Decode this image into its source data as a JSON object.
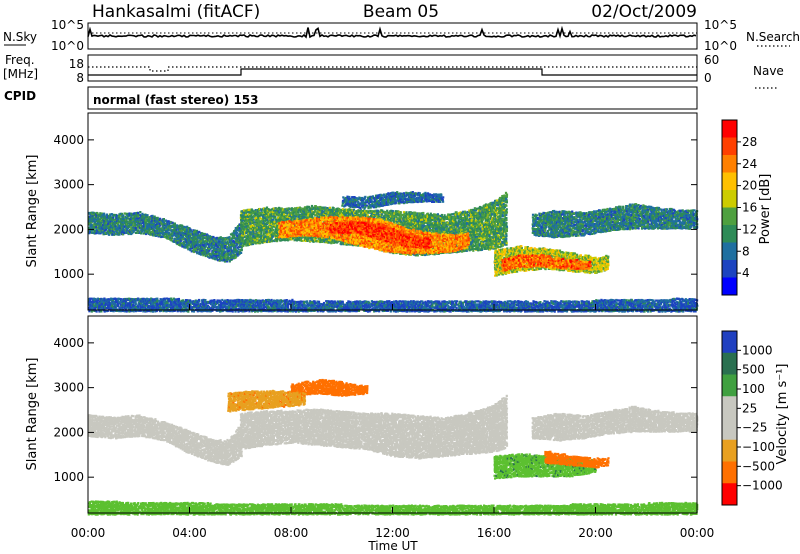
{
  "header": {
    "station": "Hankasalmi (fitACF)",
    "beam": "Beam 05",
    "date": "02/Oct/2009"
  },
  "noise_panel": {
    "left_label": "N.Sky",
    "left_ticks": [
      "10^5",
      "10^0"
    ],
    "right_ticks": [
      "10^5",
      "10^0"
    ],
    "right_label": "N.Search"
  },
  "freq_panel": {
    "left_label_1": "Freq.",
    "left_label_2": "[MHz]",
    "left_ticks": [
      "18",
      "8"
    ],
    "right_ticks": [
      "60",
      "0"
    ],
    "right_label": "Nave"
  },
  "cpid_panel": {
    "label": "CPID",
    "mode": "normal (fast stereo) 153"
  },
  "power_panel": {
    "ylabel": "Slant Range [km]",
    "yticks": [
      "4000",
      "3000",
      "2000",
      "1000"
    ],
    "colorbar_label": "Power [dB]",
    "colorbar_ticks": [
      "28",
      "24",
      "20",
      "16",
      "12",
      "8",
      "4"
    ],
    "colorbar_colors": [
      "#ff0000",
      "#ff4000",
      "#ff8000",
      "#ffc000",
      "#cccc00",
      "#4fa040",
      "#2e8b57",
      "#1f6fa0",
      "#1c44c0",
      "#0000ff"
    ]
  },
  "velocity_panel": {
    "ylabel": "Slant Range [km]",
    "yticks": [
      "4000",
      "3000",
      "2000",
      "1000"
    ],
    "colorbar_label": "Velocity [m s⁻¹]",
    "colorbar_ticks": [
      "1000",
      "500",
      "100",
      "25",
      "−25",
      "−100",
      "−500",
      "−1000"
    ],
    "colorbar_colors": [
      "#2040c0",
      "#2a7050",
      "#40a040",
      "#c8c8c0",
      "#c8c8c0",
      "#e8a020",
      "#ff7000",
      "#ff0000"
    ]
  },
  "xaxis": {
    "label": "Time UT",
    "ticks": [
      "00:00",
      "04:00",
      "08:00",
      "12:00",
      "16:00",
      "20:00",
      "00:00"
    ]
  },
  "chart_data": [
    {
      "type": "heatmap",
      "title": "Power",
      "xlabel": "Time UT",
      "ylabel": "Slant Range [km]",
      "xlim": [
        0,
        24
      ],
      "ylim": [
        200,
        4600
      ],
      "value_unit": "dB",
      "colorbar_range": [
        0,
        30
      ],
      "bands": [
        {
          "x": [
            0.0,
            1.0,
            2.0,
            3.0,
            4.0,
            5.0,
            5.5,
            6.0
          ],
          "r_lo": [
            1950,
            1900,
            1950,
            1850,
            1550,
            1350,
            1300,
            1500
          ],
          "r_hi": [
            2400,
            2350,
            2400,
            2250,
            2050,
            1850,
            1850,
            2200
          ],
          "value": 11
        },
        {
          "x": [
            6.0,
            7.0,
            8.0,
            9.0,
            10.0,
            11.0,
            12.0,
            13.0,
            14.0,
            15.0,
            16.0,
            16.5
          ],
          "r_lo": [
            1650,
            1750,
            1800,
            1750,
            1700,
            1650,
            1500,
            1450,
            1500,
            1550,
            1600,
            1700
          ],
          "r_hi": [
            2450,
            2500,
            2500,
            2550,
            2500,
            2450,
            2450,
            2400,
            2350,
            2450,
            2650,
            2850
          ],
          "value": 14
        },
        {
          "x": [
            7.5,
            8.5,
            9.5,
            10.5,
            11.5,
            12.5,
            13.5,
            14.5,
            15.0
          ],
          "r_lo": [
            1850,
            1900,
            1850,
            1700,
            1550,
            1500,
            1500,
            1550,
            1650
          ],
          "r_hi": [
            2200,
            2250,
            2300,
            2300,
            2250,
            2050,
            1950,
            1900,
            1950
          ],
          "value": 24
        },
        {
          "x": [
            9.5,
            10.5,
            11.5,
            12.5,
            13.5
          ],
          "r_lo": [
            1950,
            1950,
            1800,
            1650,
            1600
          ],
          "r_hi": [
            2150,
            2200,
            2150,
            1950,
            1800
          ],
          "value": 28
        },
        {
          "x": [
            16.0,
            17.0,
            18.0,
            19.0,
            20.0,
            20.5
          ],
          "r_lo": [
            1000,
            1100,
            1150,
            1100,
            1050,
            1150
          ],
          "r_hi": [
            1550,
            1650,
            1600,
            1500,
            1400,
            1450
          ],
          "value": 18
        },
        {
          "x": [
            16.3,
            17.0,
            18.0,
            19.0,
            19.8
          ],
          "r_lo": [
            1100,
            1200,
            1200,
            1150,
            1150
          ],
          "r_hi": [
            1350,
            1450,
            1450,
            1350,
            1300
          ],
          "value": 26
        },
        {
          "x": [
            17.5,
            18.5,
            19.5,
            20.5,
            21.5,
            22.5,
            23.5,
            24.0
          ],
          "r_lo": [
            1900,
            1850,
            1900,
            2000,
            2050,
            2050,
            2050,
            2050
          ],
          "r_hi": [
            2350,
            2450,
            2400,
            2500,
            2600,
            2500,
            2450,
            2450
          ],
          "value": 11
        },
        {
          "x": [
            10.0,
            11.0,
            12.0,
            13.0,
            14.0
          ],
          "r_lo": [
            2550,
            2500,
            2600,
            2650,
            2650
          ],
          "r_hi": [
            2750,
            2750,
            2850,
            2850,
            2800
          ],
          "value": 9
        },
        {
          "x": [
            0.0,
            6.0,
            12.0,
            18.0,
            24.0
          ],
          "r_lo": [
            200,
            200,
            200,
            200,
            200
          ],
          "r_hi": [
            500,
            450,
            420,
            420,
            480
          ],
          "value": 8
        }
      ]
    },
    {
      "type": "heatmap",
      "title": "Velocity",
      "xlabel": "Time UT",
      "ylabel": "Slant Range [km]",
      "xlim": [
        0,
        24
      ],
      "ylim": [
        200,
        4600
      ],
      "value_unit": "m s⁻¹",
      "colorbar_range": [
        -1000,
        1000
      ],
      "bands": [
        {
          "x": [
            0.0,
            1.0,
            2.0,
            3.0,
            4.0,
            5.0,
            5.5,
            6.0
          ],
          "r_lo": [
            1950,
            1900,
            1950,
            1850,
            1550,
            1350,
            1300,
            1500
          ],
          "r_hi": [
            2400,
            2350,
            2400,
            2250,
            2050,
            1850,
            1850,
            2200
          ],
          "value": 0
        },
        {
          "x": [
            6.0,
            7.0,
            8.0,
            9.0,
            10.0,
            11.0,
            12.0,
            13.0,
            14.0,
            15.0,
            16.0,
            16.5
          ],
          "r_lo": [
            1650,
            1750,
            1800,
            1750,
            1700,
            1650,
            1500,
            1450,
            1500,
            1550,
            1600,
            1700
          ],
          "r_hi": [
            2450,
            2500,
            2500,
            2550,
            2500,
            2450,
            2450,
            2400,
            2350,
            2450,
            2650,
            2850
          ],
          "value": 0
        },
        {
          "x": [
            17.5,
            18.5,
            19.5,
            20.5,
            21.5,
            22.5,
            23.5,
            24.0
          ],
          "r_lo": [
            1900,
            1850,
            1900,
            2000,
            2050,
            2050,
            2050,
            2050
          ],
          "r_hi": [
            2350,
            2450,
            2400,
            2500,
            2600,
            2500,
            2450,
            2450
          ],
          "value": 0
        },
        {
          "x": [
            16.0,
            17.0,
            18.0,
            19.0,
            20.0
          ],
          "r_lo": [
            1000,
            1050,
            1050,
            1050,
            1150
          ],
          "r_hi": [
            1500,
            1550,
            1500,
            1450,
            1400
          ],
          "value": 250
        },
        {
          "x": [
            18.0,
            19.0,
            20.0,
            20.5
          ],
          "r_lo": [
            1350,
            1300,
            1250,
            1300
          ],
          "r_hi": [
            1600,
            1500,
            1450,
            1450
          ],
          "value": -300
        },
        {
          "x": [
            8.0,
            9.0,
            10.0,
            11.0
          ],
          "r_lo": [
            2850,
            2900,
            2850,
            2900
          ],
          "r_hi": [
            3100,
            3200,
            3150,
            3050
          ],
          "value": -300
        },
        {
          "x": [
            5.5,
            6.5,
            7.5,
            8.5
          ],
          "r_lo": [
            2500,
            2550,
            2600,
            2650
          ],
          "r_hi": [
            2900,
            2950,
            2950,
            2900
          ],
          "value": -150
        },
        {
          "x": [
            0.0,
            6.0,
            12.0,
            18.0,
            24.0
          ],
          "r_lo": [
            200,
            200,
            200,
            200,
            200
          ],
          "r_hi": [
            480,
            430,
            400,
            400,
            460
          ],
          "value": 150
        }
      ]
    }
  ]
}
